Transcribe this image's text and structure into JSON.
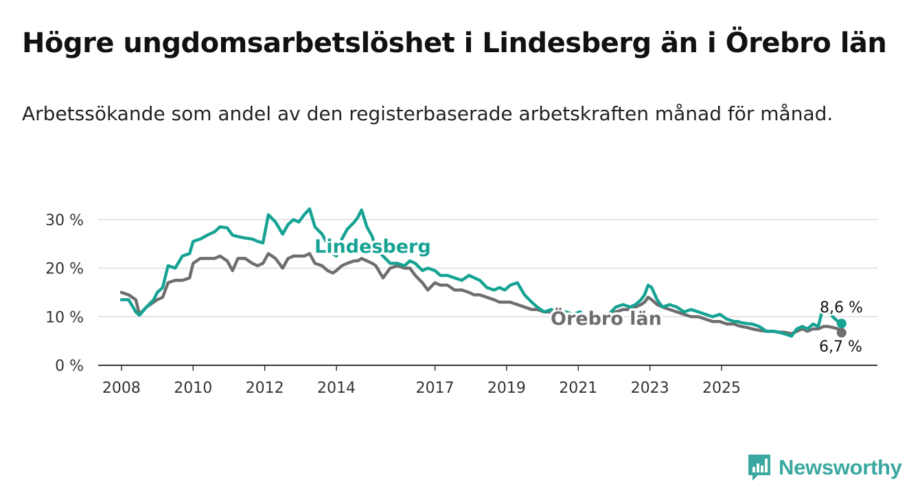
{
  "title": "Högre ungdomsarbetslöshet i Lindesberg än i Örebro län",
  "subtitle": "Arbetssökande som andel av den registerbaserade arbetskraften månad för månad.",
  "brand": {
    "name": "Newsworthy",
    "icon": "newsworthy-logo-icon",
    "color": "#3aa8a0"
  },
  "chart_data": {
    "type": "line",
    "x_ticks": [
      "2008",
      "2010",
      "2012",
      "2014",
      "2017",
      "2019",
      "2021",
      "2023",
      "2025"
    ],
    "x_tick_values": [
      2008.0,
      2010.0,
      2012.0,
      2014.0,
      2016.75,
      2018.75,
      2020.75,
      2022.75,
      2024.75
    ],
    "y_ticks": [
      "0 %",
      "10 %",
      "20 %",
      "30 %"
    ],
    "y_tick_values": [
      0,
      10,
      20,
      30
    ],
    "ylim": [
      0,
      30
    ],
    "grid": "horizontal",
    "series": [
      {
        "name": "Lindesberg",
        "color": "#16a394",
        "end_label": "8,6 %",
        "points": [
          [
            2008.0,
            13.5
          ],
          [
            2008.2,
            13.5
          ],
          [
            2008.4,
            11.0
          ],
          [
            2008.5,
            10.3
          ],
          [
            2008.7,
            12.0
          ],
          [
            2008.9,
            13.5
          ],
          [
            2009.0,
            15.0
          ],
          [
            2009.15,
            16.0
          ],
          [
            2009.3,
            20.5
          ],
          [
            2009.5,
            20.0
          ],
          [
            2009.7,
            22.5
          ],
          [
            2009.9,
            23.0
          ],
          [
            2010.0,
            25.5
          ],
          [
            2010.2,
            26.0
          ],
          [
            2010.4,
            26.8
          ],
          [
            2010.6,
            27.5
          ],
          [
            2010.75,
            28.5
          ],
          [
            2010.95,
            28.3
          ],
          [
            2011.1,
            26.8
          ],
          [
            2011.25,
            26.5
          ],
          [
            2011.45,
            26.2
          ],
          [
            2011.65,
            26.0
          ],
          [
            2011.8,
            25.5
          ],
          [
            2011.95,
            25.2
          ],
          [
            2012.1,
            31.0
          ],
          [
            2012.3,
            29.5
          ],
          [
            2012.5,
            27.0
          ],
          [
            2012.65,
            29.0
          ],
          [
            2012.8,
            30.0
          ],
          [
            2012.95,
            29.5
          ],
          [
            2013.1,
            31.0
          ],
          [
            2013.25,
            32.2
          ],
          [
            2013.4,
            28.5
          ],
          [
            2013.6,
            27.0
          ],
          [
            2013.75,
            25.0
          ],
          [
            2013.9,
            23.0
          ],
          [
            2014.0,
            22.5
          ],
          [
            2014.15,
            26.0
          ],
          [
            2014.3,
            28.0
          ],
          [
            2014.5,
            29.5
          ],
          [
            2014.6,
            30.5
          ],
          [
            2014.7,
            32.0
          ],
          [
            2014.85,
            28.5
          ],
          [
            2015.0,
            26.5
          ],
          [
            2015.1,
            24.0
          ],
          [
            2015.3,
            22.5
          ],
          [
            2015.5,
            21.0
          ],
          [
            2015.7,
            21.0
          ],
          [
            2015.9,
            20.5
          ],
          [
            2016.05,
            21.5
          ],
          [
            2016.2,
            21.0
          ],
          [
            2016.4,
            19.5
          ],
          [
            2016.55,
            20.0
          ],
          [
            2016.75,
            19.5
          ],
          [
            2016.9,
            18.5
          ],
          [
            2017.1,
            18.5
          ],
          [
            2017.3,
            18.0
          ],
          [
            2017.5,
            17.5
          ],
          [
            2017.7,
            18.5
          ],
          [
            2017.85,
            18.0
          ],
          [
            2018.0,
            17.5
          ],
          [
            2018.2,
            16.0
          ],
          [
            2018.4,
            15.5
          ],
          [
            2018.55,
            16.0
          ],
          [
            2018.7,
            15.5
          ],
          [
            2018.85,
            16.5
          ],
          [
            2019.05,
            17.0
          ],
          [
            2019.25,
            14.5
          ],
          [
            2019.45,
            13.0
          ],
          [
            2019.6,
            12.0
          ],
          [
            2019.8,
            11.0
          ],
          [
            2020.0,
            11.5
          ],
          [
            2020.2,
            11.0
          ],
          [
            2020.4,
            11.0
          ],
          [
            2020.6,
            10.5
          ],
          [
            2020.8,
            11.0
          ],
          [
            2020.95,
            10.0
          ],
          [
            2021.15,
            10.5
          ],
          [
            2021.35,
            10.0
          ],
          [
            2021.6,
            10.5
          ],
          [
            2021.8,
            12.0
          ],
          [
            2022.0,
            12.5
          ],
          [
            2022.2,
            12.0
          ],
          [
            2022.35,
            12.5
          ],
          [
            2022.5,
            13.5
          ],
          [
            2022.6,
            14.5
          ],
          [
            2022.7,
            16.5
          ],
          [
            2022.8,
            16.0
          ],
          [
            2022.95,
            13.5
          ],
          [
            2023.1,
            12.0
          ],
          [
            2023.3,
            12.5
          ],
          [
            2023.5,
            12.0
          ],
          [
            2023.7,
            11.0
          ],
          [
            2023.9,
            11.5
          ],
          [
            2024.1,
            11.0
          ],
          [
            2024.3,
            10.5
          ],
          [
            2024.5,
            10.0
          ],
          [
            2024.7,
            10.5
          ],
          [
            2024.9,
            9.5
          ],
          [
            2025.1,
            9.0
          ],
          [
            2025.2,
            9.0
          ],
          [
            2025.3,
            8.8
          ],
          [
            2025.45,
            8.6
          ],
          [
            2025.6,
            8.5
          ],
          [
            2025.8,
            8.0
          ],
          [
            2026.0,
            7.0
          ],
          [
            2026.2,
            7.0
          ],
          [
            2026.35,
            6.8
          ],
          [
            2026.5,
            6.5
          ],
          [
            2026.7,
            6.0
          ],
          [
            2026.85,
            7.5
          ],
          [
            2027.0,
            8.0
          ],
          [
            2027.15,
            7.5
          ],
          [
            2027.3,
            8.5
          ],
          [
            2027.45,
            8.0
          ],
          [
            2027.6,
            12.5
          ],
          [
            2027.7,
            11.5
          ],
          [
            2027.85,
            10.0
          ],
          [
            2028.0,
            9.0
          ],
          [
            2028.1,
            8.6
          ]
        ]
      },
      {
        "name": "Örebro län",
        "color": "#6e6e70",
        "end_label": "6,7 %",
        "points": [
          [
            2008.0,
            15.0
          ],
          [
            2008.2,
            14.5
          ],
          [
            2008.4,
            13.5
          ],
          [
            2008.5,
            10.5
          ],
          [
            2008.7,
            12.0
          ],
          [
            2008.9,
            13.0
          ],
          [
            2009.0,
            13.5
          ],
          [
            2009.15,
            14.0
          ],
          [
            2009.3,
            17.0
          ],
          [
            2009.5,
            17.5
          ],
          [
            2009.7,
            17.5
          ],
          [
            2009.9,
            18.0
          ],
          [
            2010.0,
            21.0
          ],
          [
            2010.2,
            22.0
          ],
          [
            2010.4,
            22.0
          ],
          [
            2010.6,
            22.0
          ],
          [
            2010.75,
            22.5
          ],
          [
            2010.95,
            21.5
          ],
          [
            2011.1,
            19.5
          ],
          [
            2011.25,
            22.0
          ],
          [
            2011.45,
            22.0
          ],
          [
            2011.65,
            21.0
          ],
          [
            2011.8,
            20.5
          ],
          [
            2011.95,
            21.0
          ],
          [
            2012.1,
            23.0
          ],
          [
            2012.3,
            22.0
          ],
          [
            2012.5,
            20.0
          ],
          [
            2012.65,
            22.0
          ],
          [
            2012.8,
            22.5
          ],
          [
            2012.95,
            22.5
          ],
          [
            2013.1,
            22.5
          ],
          [
            2013.25,
            23.0
          ],
          [
            2013.4,
            21.0
          ],
          [
            2013.6,
            20.5
          ],
          [
            2013.75,
            19.5
          ],
          [
            2013.9,
            19.0
          ],
          [
            2014.0,
            19.5
          ],
          [
            2014.15,
            20.5
          ],
          [
            2014.3,
            21.0
          ],
          [
            2014.5,
            21.5
          ],
          [
            2014.6,
            21.5
          ],
          [
            2014.7,
            22.0
          ],
          [
            2014.85,
            21.5
          ],
          [
            2015.0,
            21.0
          ],
          [
            2015.1,
            20.5
          ],
          [
            2015.3,
            18.0
          ],
          [
            2015.5,
            20.0
          ],
          [
            2015.7,
            20.5
          ],
          [
            2015.9,
            20.0
          ],
          [
            2016.05,
            20.0
          ],
          [
            2016.2,
            18.5
          ],
          [
            2016.4,
            17.0
          ],
          [
            2016.55,
            15.5
          ],
          [
            2016.75,
            17.0
          ],
          [
            2016.9,
            16.5
          ],
          [
            2017.1,
            16.5
          ],
          [
            2017.3,
            15.5
          ],
          [
            2017.5,
            15.5
          ],
          [
            2017.7,
            15.0
          ],
          [
            2017.85,
            14.5
          ],
          [
            2018.0,
            14.5
          ],
          [
            2018.2,
            14.0
          ],
          [
            2018.4,
            13.5
          ],
          [
            2018.55,
            13.0
          ],
          [
            2018.7,
            13.0
          ],
          [
            2018.85,
            13.0
          ],
          [
            2019.05,
            12.5
          ],
          [
            2019.25,
            12.0
          ],
          [
            2019.45,
            11.5
          ],
          [
            2019.6,
            11.5
          ],
          [
            2019.8,
            11.0
          ],
          [
            2020.0,
            11.0
          ],
          [
            2020.2,
            10.5
          ],
          [
            2020.4,
            10.5
          ],
          [
            2020.6,
            10.0
          ],
          [
            2020.8,
            10.0
          ],
          [
            2020.95,
            10.0
          ],
          [
            2021.15,
            10.0
          ],
          [
            2021.35,
            10.0
          ],
          [
            2021.6,
            10.5
          ],
          [
            2021.8,
            11.0
          ],
          [
            2022.0,
            11.5
          ],
          [
            2022.2,
            11.5
          ],
          [
            2022.35,
            12.0
          ],
          [
            2022.5,
            12.5
          ],
          [
            2022.6,
            13.0
          ],
          [
            2022.7,
            14.0
          ],
          [
            2022.8,
            13.5
          ],
          [
            2022.95,
            12.5
          ],
          [
            2023.1,
            12.0
          ],
          [
            2023.3,
            11.5
          ],
          [
            2023.5,
            11.0
          ],
          [
            2023.7,
            10.5
          ],
          [
            2023.9,
            10.0
          ],
          [
            2024.1,
            10.0
          ],
          [
            2024.3,
            9.5
          ],
          [
            2024.5,
            9.0
          ],
          [
            2024.7,
            9.0
          ],
          [
            2024.9,
            8.5
          ],
          [
            2025.1,
            8.5
          ],
          [
            2025.2,
            8.2
          ],
          [
            2025.3,
            8.0
          ],
          [
            2025.45,
            7.8
          ],
          [
            2025.6,
            7.5
          ],
          [
            2025.8,
            7.2
          ],
          [
            2026.0,
            7.0
          ],
          [
            2026.2,
            7.0
          ],
          [
            2026.35,
            6.8
          ],
          [
            2026.5,
            6.8
          ],
          [
            2026.7,
            6.5
          ],
          [
            2026.85,
            7.0
          ],
          [
            2027.0,
            7.5
          ],
          [
            2027.15,
            7.0
          ],
          [
            2027.3,
            7.5
          ],
          [
            2027.45,
            7.5
          ],
          [
            2027.6,
            8.0
          ],
          [
            2027.7,
            8.0
          ],
          [
            2027.85,
            7.8
          ],
          [
            2028.0,
            7.5
          ],
          [
            2028.1,
            6.7
          ]
        ]
      }
    ]
  }
}
